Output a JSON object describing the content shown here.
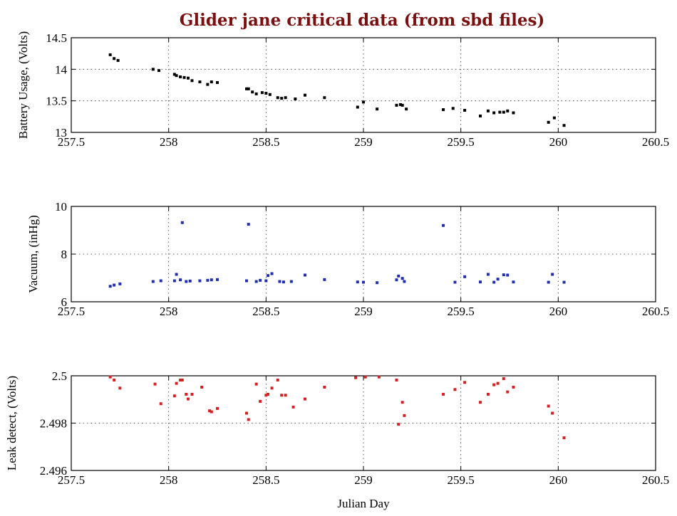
{
  "chart_data": [
    {
      "type": "scatter",
      "title": "Glider jane critical data (from sbd files)",
      "ylabel": "Battery Usage, (Volts)",
      "xlim": [
        257.5,
        260.5
      ],
      "ylim": [
        13,
        14.5
      ],
      "xticks": [
        "257.5",
        "258",
        "258.5",
        "259",
        "259.5",
        "260",
        "260.5"
      ],
      "yticks": [
        "13",
        "13.5",
        "14",
        "14.5"
      ],
      "grid": true,
      "color": "#000000",
      "x": [
        257.7,
        257.72,
        257.74,
        257.92,
        257.95,
        258.03,
        258.04,
        258.06,
        258.08,
        258.1,
        258.12,
        258.16,
        258.2,
        258.22,
        258.25,
        258.4,
        258.41,
        258.43,
        258.45,
        258.48,
        258.5,
        258.52,
        258.56,
        258.58,
        258.6,
        258.65,
        258.7,
        258.8,
        258.97,
        259.0,
        259.07,
        259.17,
        259.19,
        259.2,
        259.22,
        259.41,
        259.46,
        259.52,
        259.6,
        259.64,
        259.67,
        259.7,
        259.72,
        259.74,
        259.77,
        259.95,
        259.98,
        260.03
      ],
      "y": [
        14.23,
        14.17,
        14.14,
        14.0,
        13.98,
        13.92,
        13.9,
        13.88,
        13.87,
        13.86,
        13.82,
        13.8,
        13.76,
        13.8,
        13.79,
        13.69,
        13.69,
        13.64,
        13.61,
        13.63,
        13.62,
        13.6,
        13.55,
        13.54,
        13.55,
        13.53,
        13.59,
        13.55,
        13.4,
        13.48,
        13.37,
        13.43,
        13.44,
        13.43,
        13.37,
        13.36,
        13.38,
        13.35,
        13.26,
        13.34,
        13.31,
        13.32,
        13.32,
        13.34,
        13.31,
        13.16,
        13.23,
        13.11
      ]
    },
    {
      "type": "scatter",
      "ylabel": "Vacuum, (inHg)",
      "xlim": [
        257.5,
        260.5
      ],
      "ylim": [
        6,
        10
      ],
      "xticks": [
        "257.5",
        "258",
        "258.5",
        "259",
        "259.5",
        "260",
        "260.5"
      ],
      "yticks": [
        "6",
        "8",
        "10"
      ],
      "grid": true,
      "color": "#1f2fb0",
      "x": [
        257.7,
        257.72,
        257.75,
        257.92,
        257.96,
        258.03,
        258.04,
        258.06,
        258.07,
        258.09,
        258.11,
        258.16,
        258.2,
        258.22,
        258.25,
        258.4,
        258.41,
        258.45,
        258.47,
        258.5,
        258.51,
        258.53,
        258.57,
        258.59,
        258.63,
        258.7,
        258.8,
        258.97,
        259.0,
        259.07,
        259.17,
        259.18,
        259.2,
        259.21,
        259.41,
        259.47,
        259.52,
        259.6,
        259.64,
        259.67,
        259.69,
        259.72,
        259.74,
        259.77,
        259.95,
        259.97,
        260.03
      ],
      "y": [
        6.65,
        6.7,
        6.75,
        6.85,
        6.88,
        6.88,
        7.15,
        6.92,
        9.32,
        6.85,
        6.87,
        6.88,
        6.9,
        6.92,
        6.93,
        6.88,
        9.25,
        6.85,
        6.9,
        6.88,
        7.1,
        7.18,
        6.85,
        6.83,
        6.85,
        7.12,
        6.93,
        6.83,
        6.82,
        6.8,
        6.92,
        7.08,
        6.98,
        6.85,
        9.2,
        6.82,
        7.05,
        6.83,
        7.15,
        6.82,
        6.95,
        7.13,
        7.12,
        6.83,
        6.82,
        7.15,
        6.82
      ]
    },
    {
      "type": "scatter",
      "ylabel": "Leak detect, (Volts)",
      "xlabel": "Julian Day",
      "xlim": [
        257.5,
        260.5
      ],
      "ylim": [
        2.496,
        2.5
      ],
      "xticks": [
        "257.5",
        "258",
        "258.5",
        "259",
        "259.5",
        "260",
        "260.5"
      ],
      "yticks": [
        "2.496",
        "2.498",
        "2.5"
      ],
      "grid": true,
      "color": "#d42020",
      "x": [
        257.7,
        257.72,
        257.75,
        257.93,
        257.96,
        258.03,
        258.04,
        258.06,
        258.07,
        258.09,
        258.1,
        258.12,
        258.17,
        258.21,
        258.22,
        258.25,
        258.4,
        258.41,
        258.45,
        258.47,
        258.5,
        258.51,
        258.53,
        258.56,
        258.58,
        258.6,
        258.64,
        258.7,
        258.8,
        258.96,
        259.01,
        259.08,
        259.17,
        259.18,
        259.2,
        259.21,
        259.41,
        259.47,
        259.52,
        259.6,
        259.64,
        259.67,
        259.69,
        259.72,
        259.74,
        259.77,
        259.95,
        259.97,
        260.03
      ],
      "y": [
        2.49995,
        2.49982,
        2.49948,
        2.49965,
        2.49882,
        2.49915,
        2.49968,
        2.49982,
        2.49982,
        2.49922,
        2.49902,
        2.49922,
        2.49952,
        2.49852,
        2.49848,
        2.49862,
        2.49842,
        2.49815,
        2.49965,
        2.49892,
        2.49918,
        2.49922,
        2.49948,
        2.49982,
        2.49918,
        2.49918,
        2.49868,
        2.49902,
        2.49952,
        2.49992,
        2.49995,
        2.49995,
        2.49982,
        2.49795,
        2.49888,
        2.49832,
        2.49922,
        2.49942,
        2.49972,
        2.49888,
        2.49922,
        2.49962,
        2.49968,
        2.49988,
        2.49932,
        2.49952,
        2.49872,
        2.49842,
        2.49738
      ]
    }
  ]
}
